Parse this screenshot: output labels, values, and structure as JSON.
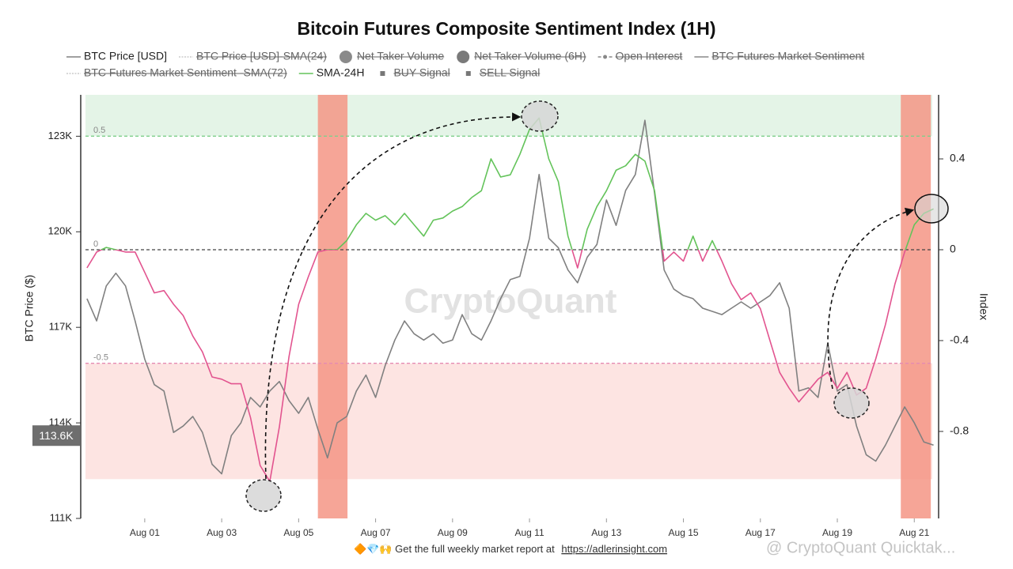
{
  "chart_data": {
    "type": "line",
    "title": "Bitcoin Futures Composite Sentiment Index (1H)",
    "y_label": "BTC Price ($)",
    "y2_label": "Index",
    "watermark": "CryptoQuant",
    "footer": {
      "text": "🔶💎🙌 Get the full weekly market report at",
      "link": "https://adlerinsight.com"
    },
    "credit": "@ CryptoQuant Quicktak...",
    "price_marker": {
      "value": 113600,
      "label": "113.6K"
    },
    "xlim": [
      -0.54,
      21.55
    ],
    "xticks": [
      {
        "value": 1,
        "label": "Aug 01"
      },
      {
        "value": 3,
        "label": "Aug 03"
      },
      {
        "value": 5,
        "label": "Aug 05"
      },
      {
        "value": 7,
        "label": "Aug 07"
      },
      {
        "value": 9,
        "label": "Aug 09"
      },
      {
        "value": 11,
        "label": "Aug 11"
      },
      {
        "value": 13,
        "label": "Aug 13"
      },
      {
        "value": 15,
        "label": "Aug 15"
      },
      {
        "value": 17,
        "label": "Aug 17"
      },
      {
        "value": 19,
        "label": "Aug 19"
      },
      {
        "value": 21,
        "label": "Aug 21"
      }
    ],
    "ylim": [
      111000,
      124300
    ],
    "yticks": [
      {
        "value": 111000,
        "label": "111K"
      },
      {
        "value": 114000,
        "label": "114K"
      },
      {
        "value": 117000,
        "label": "117K"
      },
      {
        "value": 120000,
        "label": "120K"
      },
      {
        "value": 123000,
        "label": "123K"
      }
    ],
    "y2lim": [
      -1.183,
      0.682
    ],
    "y2ticks": [
      -0.8,
      -0.4,
      0,
      0.4
    ],
    "grid": false,
    "zones": [
      {
        "from": 0.5,
        "to": 0.682,
        "color": "#e4f4e7"
      },
      {
        "from": -1.01,
        "to": -0.5,
        "color": "#fde4e2"
      }
    ],
    "reference_lines": [
      {
        "value": 0.5,
        "label": "0.5",
        "color": "#7fd08b"
      },
      {
        "value": 0,
        "label": "0",
        "color": "#444444"
      },
      {
        "value": -0.5,
        "label": "-0.5",
        "color": "#e58bb3"
      }
    ],
    "sell_signals": [
      {
        "start": 5.5,
        "end": 6.27
      },
      {
        "start": 20.65,
        "end": 21.43
      }
    ],
    "sell_color": "#f59585",
    "x": [
      -0.5,
      -0.25,
      0,
      0.25,
      0.5,
      0.75,
      1,
      1.25,
      1.5,
      1.75,
      2,
      2.25,
      2.5,
      2.75,
      3,
      3.25,
      3.5,
      3.75,
      4,
      4.25,
      4.5,
      4.75,
      5,
      5.25,
      5.5,
      5.75,
      6,
      6.25,
      6.5,
      6.75,
      7,
      7.25,
      7.5,
      7.75,
      8,
      8.25,
      8.5,
      8.75,
      9,
      9.25,
      9.5,
      9.75,
      10,
      10.25,
      10.5,
      10.75,
      11,
      11.25,
      11.5,
      11.75,
      12,
      12.25,
      12.5,
      12.75,
      13,
      13.25,
      13.5,
      13.75,
      14,
      14.25,
      14.5,
      14.75,
      15,
      15.25,
      15.5,
      15.75,
      16,
      16.25,
      16.5,
      16.75,
      17,
      17.25,
      17.5,
      17.75,
      18,
      18.25,
      18.5,
      18.75,
      19,
      19.25,
      19.5,
      19.75,
      20,
      20.25,
      20.5,
      20.75,
      21,
      21.25,
      21.5
    ],
    "series": [
      {
        "name": "BTC Price [USD]",
        "color": "#808080",
        "symbol": "line",
        "axis": "y",
        "values": [
          117900,
          117200,
          118300,
          118700,
          118300,
          117200,
          116000,
          115200,
          115000,
          113700,
          113900,
          114200,
          113700,
          112700,
          112400,
          113600,
          114000,
          114800,
          114500,
          115000,
          115300,
          114700,
          114300,
          114800,
          113800,
          112900,
          114000,
          114200,
          115000,
          115500,
          114800,
          115800,
          116600,
          117200,
          116800,
          116600,
          116800,
          116500,
          116600,
          117400,
          116800,
          116600,
          117200,
          117900,
          118500,
          118600,
          119800,
          121800,
          119800,
          119500,
          118800,
          118400,
          119200,
          119600,
          121000,
          120200,
          121300,
          121800,
          123500,
          121200,
          118800,
          118200,
          118000,
          117900,
          117600,
          117500,
          117400,
          117600,
          117800,
          117600,
          117800,
          118000,
          118400,
          117600,
          115000,
          115100,
          114800,
          116500,
          115000,
          115200,
          113900,
          113000,
          112800,
          113300,
          113900,
          114500,
          114000,
          113400,
          113300
        ]
      },
      {
        "name": "BTC Price [USD]-SMA(24)",
        "color": "#b0b0b0",
        "symbol": "dotted",
        "hidden": true
      },
      {
        "name": "Net Taker Volume",
        "color": "#8a8a8a",
        "symbol": "circle",
        "hidden": true
      },
      {
        "name": "Net Taker Volume (6H)",
        "color": "#7a7a7a",
        "symbol": "circle",
        "hidden": true
      },
      {
        "name": "Open Interest",
        "color": "#888888",
        "symbol": "line-dot",
        "hidden": true
      },
      {
        "name": "BTC Futures Market Sentiment",
        "color": "#888888",
        "symbol": "line",
        "hidden": true
      },
      {
        "name": "BTC Futures Market Sentiment -SMA(72)",
        "color": "#b0b0b0",
        "symbol": "dotted",
        "hidden": true
      },
      {
        "name": "SMA-24H",
        "color": "#63c35a",
        "negative_color": "#e2548f",
        "symbol": "line",
        "axis": "y2",
        "values": [
          -0.08,
          -0.01,
          0.01,
          0.0,
          -0.01,
          -0.01,
          -0.1,
          -0.19,
          -0.18,
          -0.24,
          -0.29,
          -0.38,
          -0.45,
          -0.56,
          -0.57,
          -0.59,
          -0.59,
          -0.74,
          -0.95,
          -1.02,
          -0.78,
          -0.47,
          -0.24,
          -0.12,
          -0.01,
          0.0,
          0.0,
          0.04,
          0.11,
          0.16,
          0.13,
          0.15,
          0.11,
          0.16,
          0.11,
          0.06,
          0.13,
          0.14,
          0.17,
          0.19,
          0.23,
          0.26,
          0.4,
          0.32,
          0.33,
          0.42,
          0.53,
          0.58,
          0.4,
          0.3,
          0.06,
          -0.08,
          0.09,
          0.19,
          0.26,
          0.35,
          0.37,
          0.42,
          0.39,
          0.26,
          -0.05,
          -0.01,
          -0.05,
          0.06,
          -0.05,
          0.04,
          -0.05,
          -0.15,
          -0.22,
          -0.19,
          -0.26,
          -0.4,
          -0.54,
          -0.61,
          -0.67,
          -0.62,
          -0.57,
          -0.54,
          -0.61,
          -0.54,
          -0.64,
          -0.61,
          -0.48,
          -0.33,
          -0.15,
          -0.01,
          0.11,
          0.16,
          0.18
        ]
      },
      {
        "name": "BUY Signal",
        "color": "#777777",
        "symbol": "square",
        "hidden": true
      },
      {
        "name": "SELL Signal",
        "color": "#777777",
        "symbol": "square",
        "hidden": true
      }
    ]
  }
}
